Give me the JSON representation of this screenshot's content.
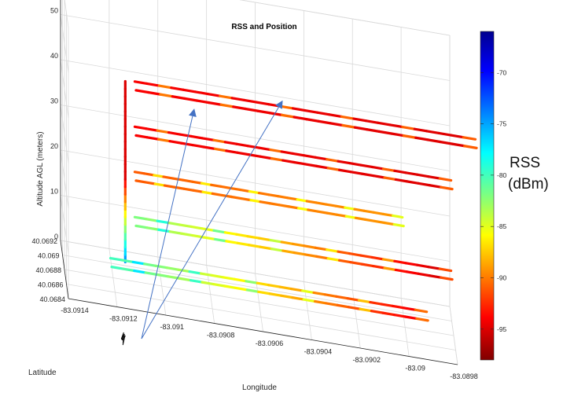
{
  "chart_data": {
    "type": "line",
    "subtype": "3d-trajectory",
    "title": "RSS and Position",
    "xlabel": "Longitude",
    "ylabel": "Latitude",
    "zlabel": "Altitude AGL (meters)",
    "x_ticks": [
      "-83.0914",
      "-83.0912",
      "-83.091",
      "-83.0908",
      "-83.0906",
      "-83.0904",
      "-83.0902",
      "-83.09",
      "-83.0898"
    ],
    "y_ticks": [
      "40.0684",
      "40.0686",
      "40.0688",
      "40.069",
      "40.0692"
    ],
    "z_ticks": [
      "0",
      "10",
      "20",
      "30",
      "40",
      "50",
      "60"
    ],
    "zlim": [
      0,
      60
    ],
    "grid": true,
    "colorbar": {
      "label": "RSS\n(dBm)",
      "ticks": [
        "-70",
        "-75",
        "-80",
        "-85",
        "-90",
        "-95"
      ],
      "range": [
        -98,
        -66
      ],
      "colormap": "jet (reversed: dark red low, dark blue high)"
    },
    "series": [
      {
        "altitude_m": 0,
        "lon_start": -83.0912,
        "lon_end": -83.0899,
        "rss_start_dBm": -80,
        "rss_end_dBm": -95
      },
      {
        "altitude_m": 10,
        "lon_start": -83.0911,
        "lon_end": -83.0898,
        "rss_start_dBm": -82,
        "rss_end_dBm": -96
      },
      {
        "altitude_m": 20,
        "lon_start": -83.0911,
        "lon_end": -83.09,
        "rss_start_dBm": -91,
        "rss_end_dBm": -89
      },
      {
        "altitude_m": 30,
        "lon_start": -83.0911,
        "lon_end": -83.0898,
        "rss_start_dBm": -94,
        "rss_end_dBm": -95
      },
      {
        "altitude_m": 40,
        "lon_start": -83.0911,
        "lon_end": -83.0897,
        "rss_start_dBm": -94,
        "rss_end_dBm": -95
      }
    ],
    "vertical_climb": {
      "altitude_range_m": [
        0,
        40
      ],
      "rss_low_alt_dBm": -75,
      "rss_high_alt_dBm": -95
    },
    "ground_track": {
      "color": "#111111"
    },
    "annotations": [
      {
        "type": "arrow",
        "color": "#4472c4"
      },
      {
        "type": "arrow",
        "color": "#4472c4"
      }
    ]
  }
}
